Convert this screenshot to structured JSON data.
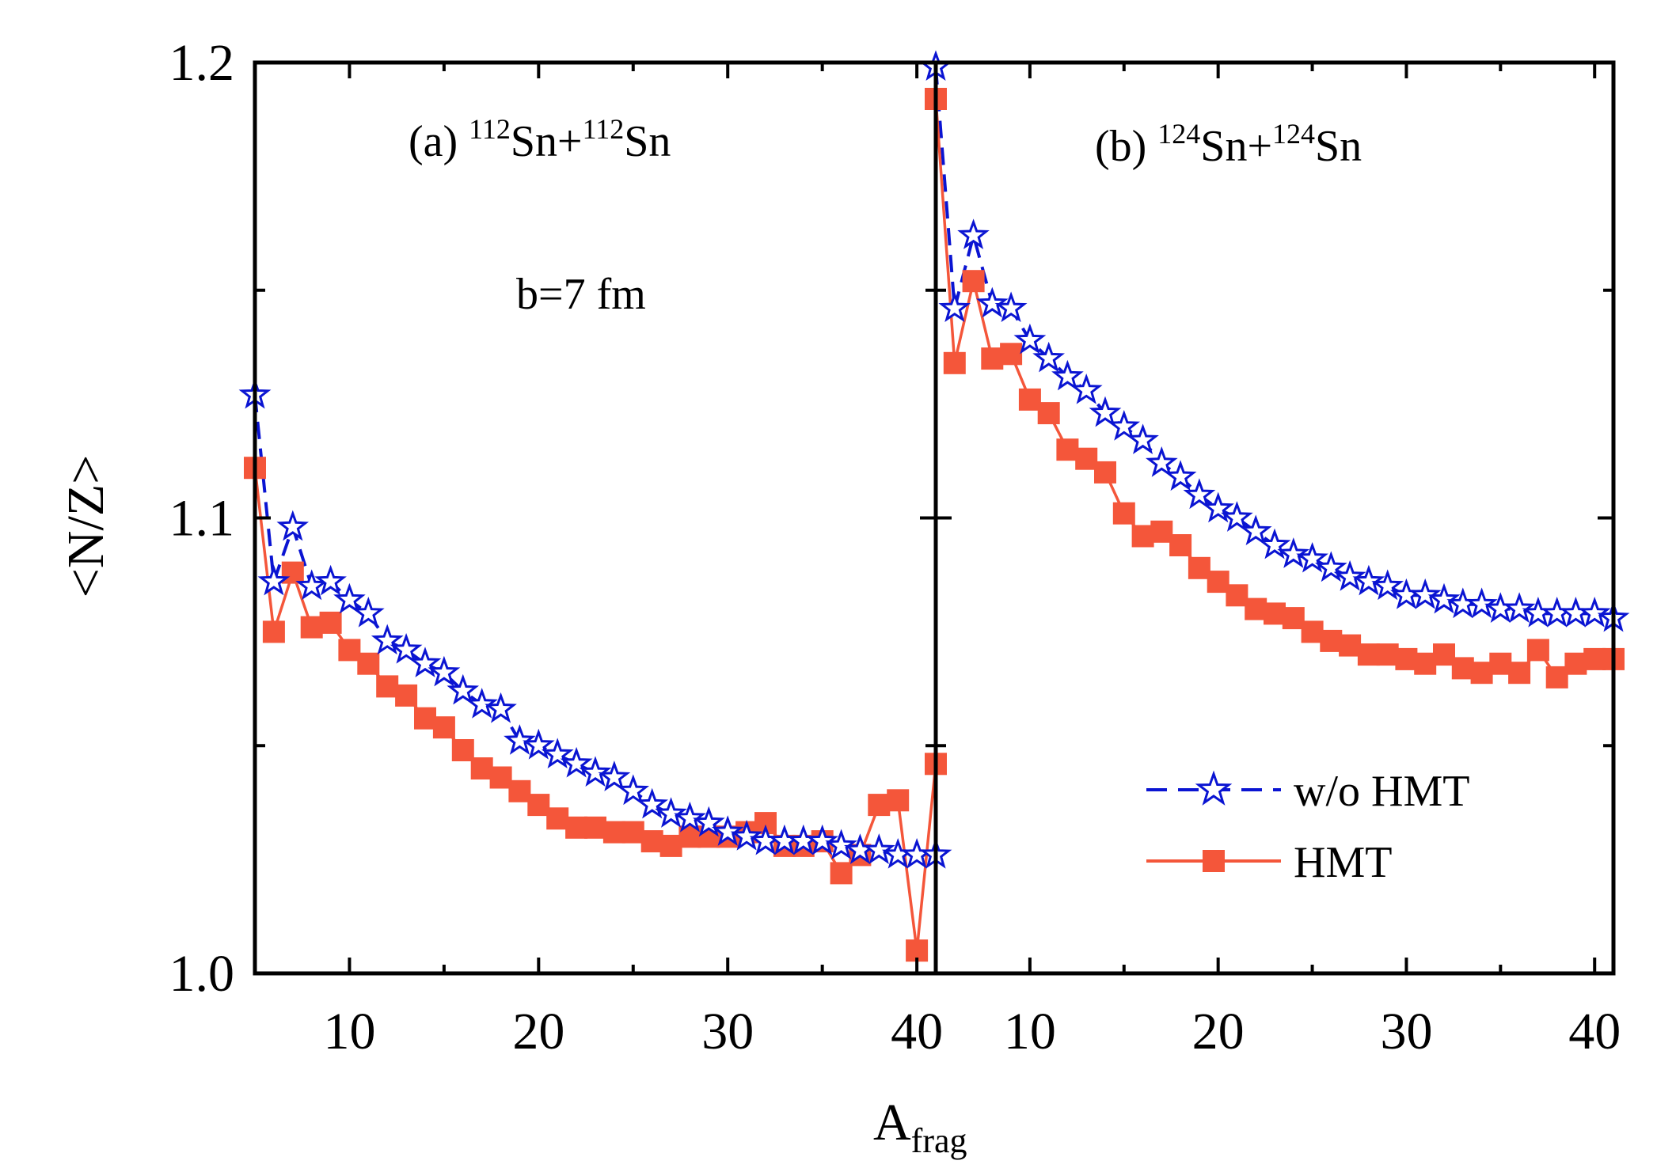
{
  "colors": {
    "without_hmt": "#0a14d2",
    "with_hmt": "#f4563a",
    "axis": "#000000",
    "background": "#ffffff"
  },
  "figure": {
    "ylabel": "<N/Z>",
    "xlabel_main": "A",
    "xlabel_sub": "frag",
    "impact_parameter": "b=7 fm"
  },
  "chart_data": [
    {
      "type": "line",
      "panel": "a",
      "title_prefix": "(a) ",
      "title_parts": [
        "112",
        "Sn+",
        "112",
        "Sn"
      ],
      "annotation": "b=7 fm",
      "xlim": [
        5,
        41
      ],
      "ylim": [
        1.0,
        1.2
      ],
      "xticks": [
        10,
        20,
        30,
        40
      ],
      "xtick_labels": [
        "10",
        "20",
        "30",
        "40"
      ],
      "yticks": [
        1.0,
        1.05,
        1.1,
        1.15,
        1.2
      ],
      "ytick_labels": [
        "1.0",
        "",
        "1.1",
        "",
        "1.2"
      ],
      "x": [
        5,
        6,
        7,
        8,
        9,
        10,
        11,
        12,
        13,
        14,
        15,
        16,
        17,
        18,
        19,
        20,
        21,
        22,
        23,
        24,
        25,
        26,
        27,
        28,
        29,
        30,
        31,
        32,
        33,
        34,
        35,
        36,
        37,
        38,
        39,
        40,
        41
      ],
      "series": [
        {
          "name": "w/o HMT",
          "marker": "star",
          "line": "dashed",
          "values": [
            1.127,
            1.086,
            1.098,
            1.085,
            1.086,
            1.082,
            1.079,
            1.073,
            1.071,
            1.068,
            1.066,
            1.062,
            1.059,
            1.058,
            1.051,
            1.05,
            1.048,
            1.046,
            1.044,
            1.043,
            1.04,
            1.037,
            1.035,
            1.034,
            1.033,
            1.031,
            1.03,
            1.029,
            1.029,
            1.029,
            1.029,
            1.028,
            1.027,
            1.027,
            1.026,
            1.026,
            1.026
          ]
        },
        {
          "name": "HMT",
          "marker": "square",
          "line": "solid",
          "values": [
            1.111,
            1.075,
            1.088,
            1.076,
            1.077,
            1.071,
            1.068,
            1.063,
            1.061,
            1.056,
            1.054,
            1.049,
            1.045,
            1.043,
            1.04,
            1.037,
            1.034,
            1.032,
            1.032,
            1.031,
            1.031,
            1.029,
            1.028,
            1.03,
            1.03,
            1.03,
            1.031,
            1.033,
            1.028,
            1.028,
            1.029,
            1.022,
            1.026,
            1.037,
            1.038,
            1.005,
            1.046
          ]
        }
      ]
    },
    {
      "type": "line",
      "panel": "b",
      "title_prefix": "(b) ",
      "title_parts": [
        "124",
        "Sn+",
        "124",
        "Sn"
      ],
      "xlim": [
        5,
        41
      ],
      "ylim": [
        1.0,
        1.2
      ],
      "xticks": [
        10,
        20,
        30,
        40
      ],
      "xtick_labels": [
        "10",
        "20",
        "30",
        "40"
      ],
      "yticks": [
        1.0,
        1.05,
        1.1,
        1.15,
        1.2
      ],
      "x": [
        5,
        6,
        7,
        8,
        9,
        10,
        11,
        12,
        13,
        14,
        15,
        16,
        17,
        18,
        19,
        20,
        21,
        22,
        23,
        24,
        25,
        26,
        27,
        28,
        29,
        30,
        31,
        32,
        33,
        34,
        35,
        36,
        37,
        38,
        39,
        40,
        41
      ],
      "series": [
        {
          "name": "w/o HMT",
          "marker": "star",
          "line": "dashed",
          "values": [
            1.199,
            1.146,
            1.162,
            1.147,
            1.146,
            1.139,
            1.135,
            1.131,
            1.128,
            1.123,
            1.12,
            1.117,
            1.112,
            1.109,
            1.105,
            1.102,
            1.1,
            1.097,
            1.094,
            1.092,
            1.091,
            1.089,
            1.087,
            1.086,
            1.085,
            1.083,
            1.083,
            1.082,
            1.081,
            1.081,
            1.08,
            1.08,
            1.079,
            1.079,
            1.079,
            1.079,
            1.078
          ]
        },
        {
          "name": "HMT",
          "marker": "square",
          "line": "solid",
          "values": [
            1.192,
            1.134,
            1.152,
            1.135,
            1.136,
            1.126,
            1.123,
            1.115,
            1.113,
            1.11,
            1.101,
            1.096,
            1.097,
            1.094,
            1.089,
            1.086,
            1.083,
            1.08,
            1.079,
            1.078,
            1.075,
            1.073,
            1.072,
            1.07,
            1.07,
            1.069,
            1.068,
            1.07,
            1.067,
            1.066,
            1.068,
            1.066,
            1.071,
            1.065,
            1.068,
            1.069,
            1.069
          ]
        }
      ]
    }
  ],
  "legend": [
    {
      "label": "w/o HMT",
      "marker": "star",
      "line": "dashed"
    },
    {
      "label": "HMT",
      "marker": "square",
      "line": "solid"
    }
  ]
}
